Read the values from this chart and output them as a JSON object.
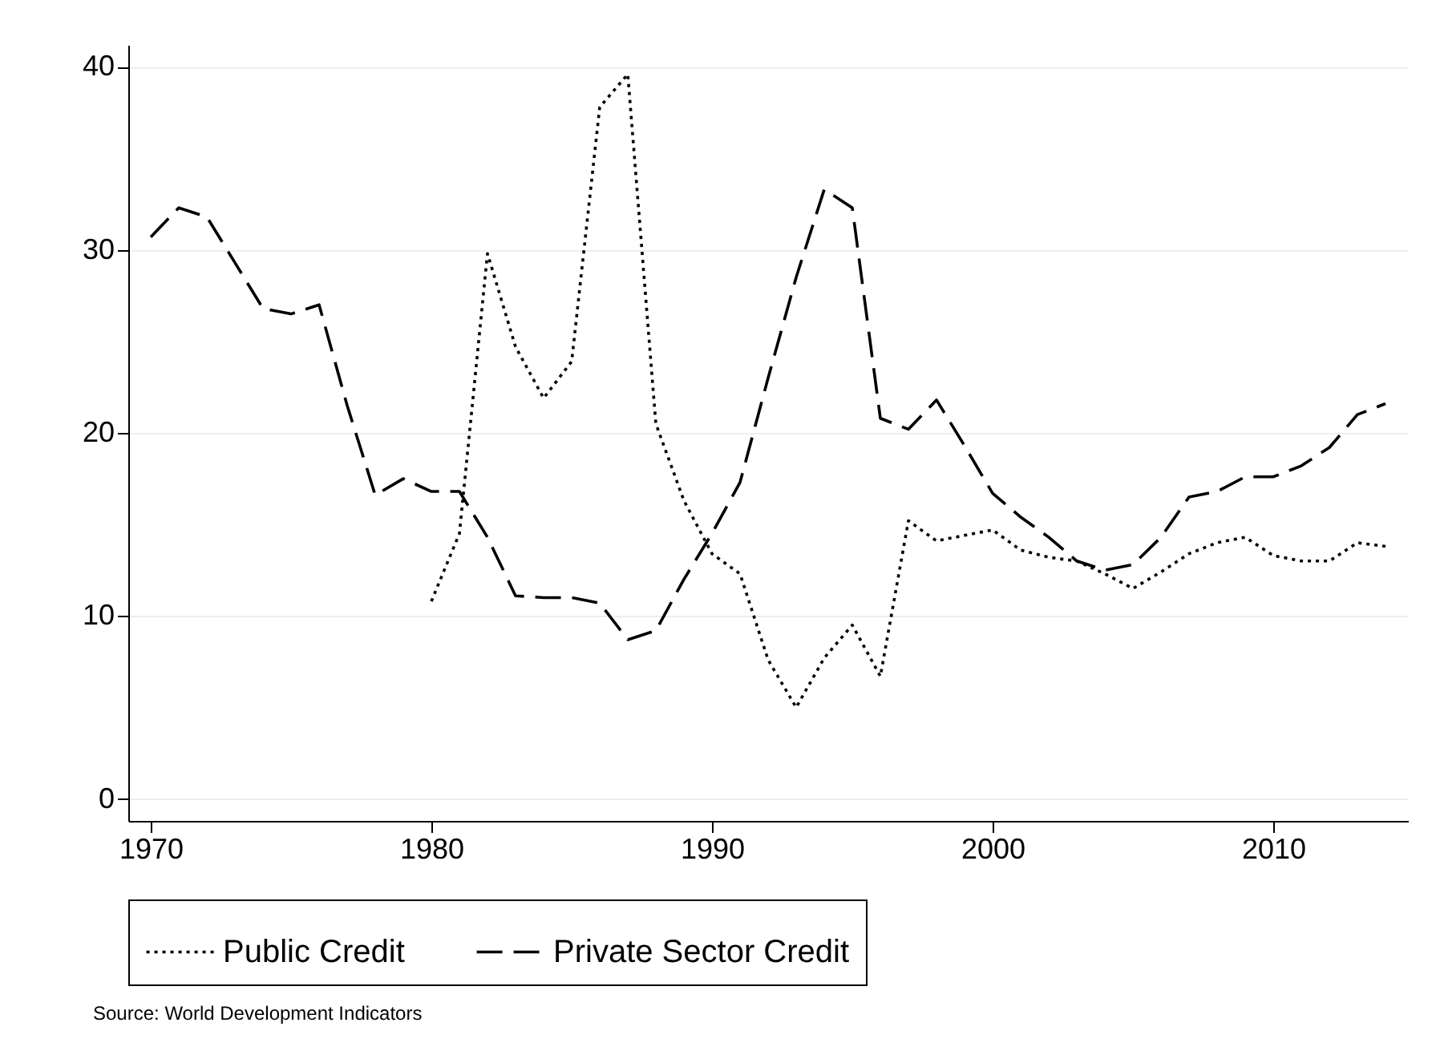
{
  "chart_data": {
    "type": "line",
    "x": [
      1970,
      1971,
      1972,
      1973,
      1974,
      1975,
      1976,
      1977,
      1978,
      1979,
      1980,
      1981,
      1982,
      1983,
      1984,
      1985,
      1986,
      1987,
      1988,
      1989,
      1990,
      1991,
      1992,
      1993,
      1994,
      1995,
      1996,
      1997,
      1998,
      1999,
      2000,
      2001,
      2002,
      2003,
      2004,
      2005,
      2006,
      2007,
      2008,
      2009,
      2010,
      2011,
      2012,
      2013,
      2014
    ],
    "series": [
      {
        "name": "Public Credit",
        "color": "#000000",
        "line_style": "dotted",
        "values": [
          null,
          null,
          null,
          null,
          null,
          null,
          null,
          null,
          null,
          null,
          10.8,
          14.5,
          29.8,
          24.7,
          21.9,
          23.9,
          37.8,
          39.6,
          20.5,
          16.3,
          13.4,
          12.3,
          7.6,
          5.0,
          7.7,
          9.5,
          6.7,
          15.2,
          14.1,
          14.4,
          14.7,
          13.6,
          13.2,
          13.0,
          12.3,
          11.5,
          12.4,
          13.4,
          14.0,
          14.3,
          13.3,
          13.0,
          13.0,
          14.0,
          13.8
        ]
      },
      {
        "name": "Private Sector Credit",
        "color": "#000000",
        "line_style": "dashed",
        "values": [
          30.7,
          32.3,
          31.8,
          29.3,
          26.8,
          26.5,
          27.0,
          21.5,
          16.6,
          17.5,
          16.8,
          16.8,
          14.3,
          11.1,
          11.0,
          11.0,
          10.7,
          8.7,
          9.2,
          12.0,
          14.5,
          17.3,
          23.0,
          28.5,
          33.3,
          32.3,
          20.8,
          20.2,
          21.8,
          19.3,
          16.7,
          15.4,
          14.3,
          13.0,
          12.5,
          12.8,
          14.3,
          16.5,
          16.8,
          17.6,
          17.6,
          18.2,
          19.2,
          21.0,
          21.6
        ]
      }
    ],
    "xlim": [
      1969.2,
      2014.8
    ],
    "xticks": [
      1970,
      1980,
      1990,
      2000,
      2010
    ],
    "ylim": [
      -1.2,
      41.2
    ],
    "yticks": [
      0,
      10,
      20,
      30,
      40
    ],
    "grid": "y",
    "legend": "bottom",
    "annotations": [
      "Source: World Development Indicators"
    ]
  }
}
